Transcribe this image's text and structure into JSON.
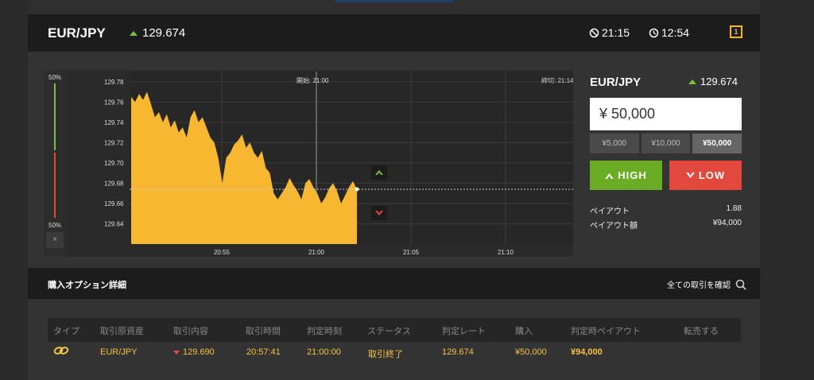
{
  "header": {
    "symbol": "EUR/JPY",
    "rate": "129.674",
    "time_remaining": "21:15",
    "clock": "12:54",
    "badge": "1"
  },
  "chart": {
    "start_label": "開始: 21:00",
    "end_label": "締切: 21:14",
    "sidebar_top_pct": "50%",
    "sidebar_bottom_pct": "50%",
    "close_label": "×"
  },
  "chart_data": {
    "type": "area",
    "x_ticks": [
      "20:55",
      "21:00",
      "21:05",
      "21:10"
    ],
    "y_ticks": [
      "129.78",
      "129.76",
      "129.74",
      "129.72",
      "129.70",
      "129.68",
      "129.66",
      "129.64"
    ],
    "ylim": [
      129.62,
      129.79
    ],
    "current_rate": 129.674,
    "values": [
      129.765,
      129.76,
      129.768,
      129.762,
      129.77,
      129.758,
      129.745,
      129.75,
      129.74,
      129.748,
      129.735,
      129.742,
      129.73,
      129.735,
      129.725,
      129.745,
      129.752,
      129.74,
      129.745,
      129.735,
      129.725,
      129.72,
      129.705,
      129.68,
      129.705,
      129.71,
      129.718,
      129.722,
      129.728,
      129.715,
      129.72,
      129.71,
      129.705,
      129.712,
      129.695,
      129.69,
      129.67,
      129.664,
      129.67,
      129.676,
      129.685,
      129.678,
      129.672,
      129.664,
      129.68,
      129.684,
      129.676,
      129.67,
      129.66,
      129.666,
      129.675,
      129.68,
      129.672,
      129.66,
      129.668,
      129.676,
      129.682,
      129.674
    ]
  },
  "trade": {
    "symbol": "EUR/JPY",
    "rate": "129.674",
    "amount": "¥ 50,000",
    "presets": [
      "¥5,000",
      "¥10,000",
      "¥50,000"
    ],
    "high_label": "HIGH",
    "low_label": "LOW",
    "payout_label": "ペイアウト",
    "payout_value": "1.88",
    "payout_amount_label": "ペイアウト額",
    "payout_amount_value": "¥94,000"
  },
  "details": {
    "title": "購入オプション詳細",
    "view_all": "全ての取引を確認"
  },
  "table": {
    "headers": [
      "タイプ",
      "取引原資産",
      "取引内容",
      "取引時間",
      "判定時刻",
      "ステータス",
      "判定レート",
      "購入",
      "判定時ペイアウト",
      "転売する"
    ],
    "row": {
      "asset": "EUR/JPY",
      "content": "129.690",
      "time": "20:57:41",
      "judge_time": "21:00:00",
      "status": "取引終了",
      "judge_rate": "129.674",
      "purchase": "¥50,000",
      "payout": "¥94,000"
    }
  },
  "colors": {
    "area": "#f7b731",
    "high": "#6aac24",
    "low": "#e2483c",
    "accent": "#f5c342"
  }
}
